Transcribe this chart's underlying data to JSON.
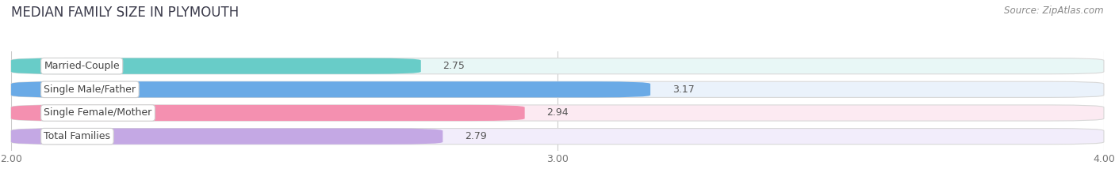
{
  "title": "MEDIAN FAMILY SIZE IN PLYMOUTH",
  "source": "Source: ZipAtlas.com",
  "categories": [
    "Married-Couple",
    "Single Male/Father",
    "Single Female/Mother",
    "Total Families"
  ],
  "values": [
    2.75,
    3.17,
    2.94,
    2.79
  ],
  "bar_colors": [
    "#68ccc8",
    "#6aaae6",
    "#f490b0",
    "#c4a8e4"
  ],
  "bar_bg_colors": [
    "#e8f7f6",
    "#eaf2fb",
    "#fceaf2",
    "#f2edfb"
  ],
  "row_bg_colors": [
    "#f0fafa",
    "#f0f5fc",
    "#fcf0f6",
    "#f5f0fc"
  ],
  "xlim": [
    2.0,
    4.0
  ],
  "xticks": [
    2.0,
    3.0,
    4.0
  ],
  "xtick_labels": [
    "2.00",
    "3.00",
    "4.00"
  ],
  "title_fontsize": 12,
  "label_fontsize": 9,
  "value_fontsize": 9,
  "source_fontsize": 8.5,
  "bar_height": 0.68,
  "background_color": "#ffffff"
}
